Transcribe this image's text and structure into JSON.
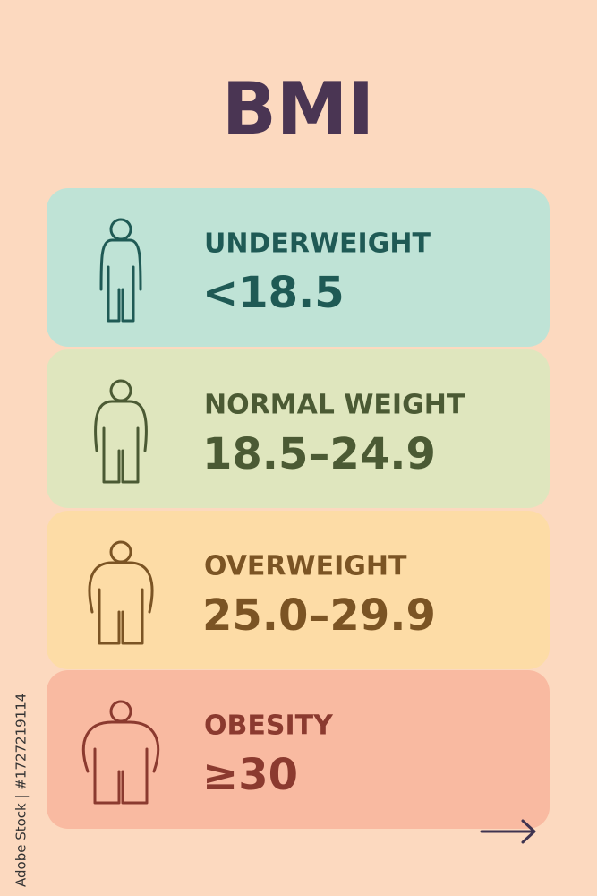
{
  "title": "BMI",
  "items": [
    {
      "label": "UNDERWEIGHT",
      "range": "<18.5",
      "color": "#bfe3d6",
      "ink": "#1f5a55",
      "build": 0
    },
    {
      "label": "NORMAL WEIGHT",
      "range": "18.5–24.9",
      "color": "#dfe6be",
      "ink": "#4b5a34",
      "build": 1
    },
    {
      "label": "OVERWEIGHT",
      "range": "25.0–29.9",
      "color": "#fddca6",
      "ink": "#7b5424",
      "build": 2
    },
    {
      "label": "OBESITY",
      "range": "≥30",
      "color": "#f9baa1",
      "ink": "#8b3a2f",
      "build": 3
    }
  ],
  "watermark": "Adobe Stock | #1727219114"
}
